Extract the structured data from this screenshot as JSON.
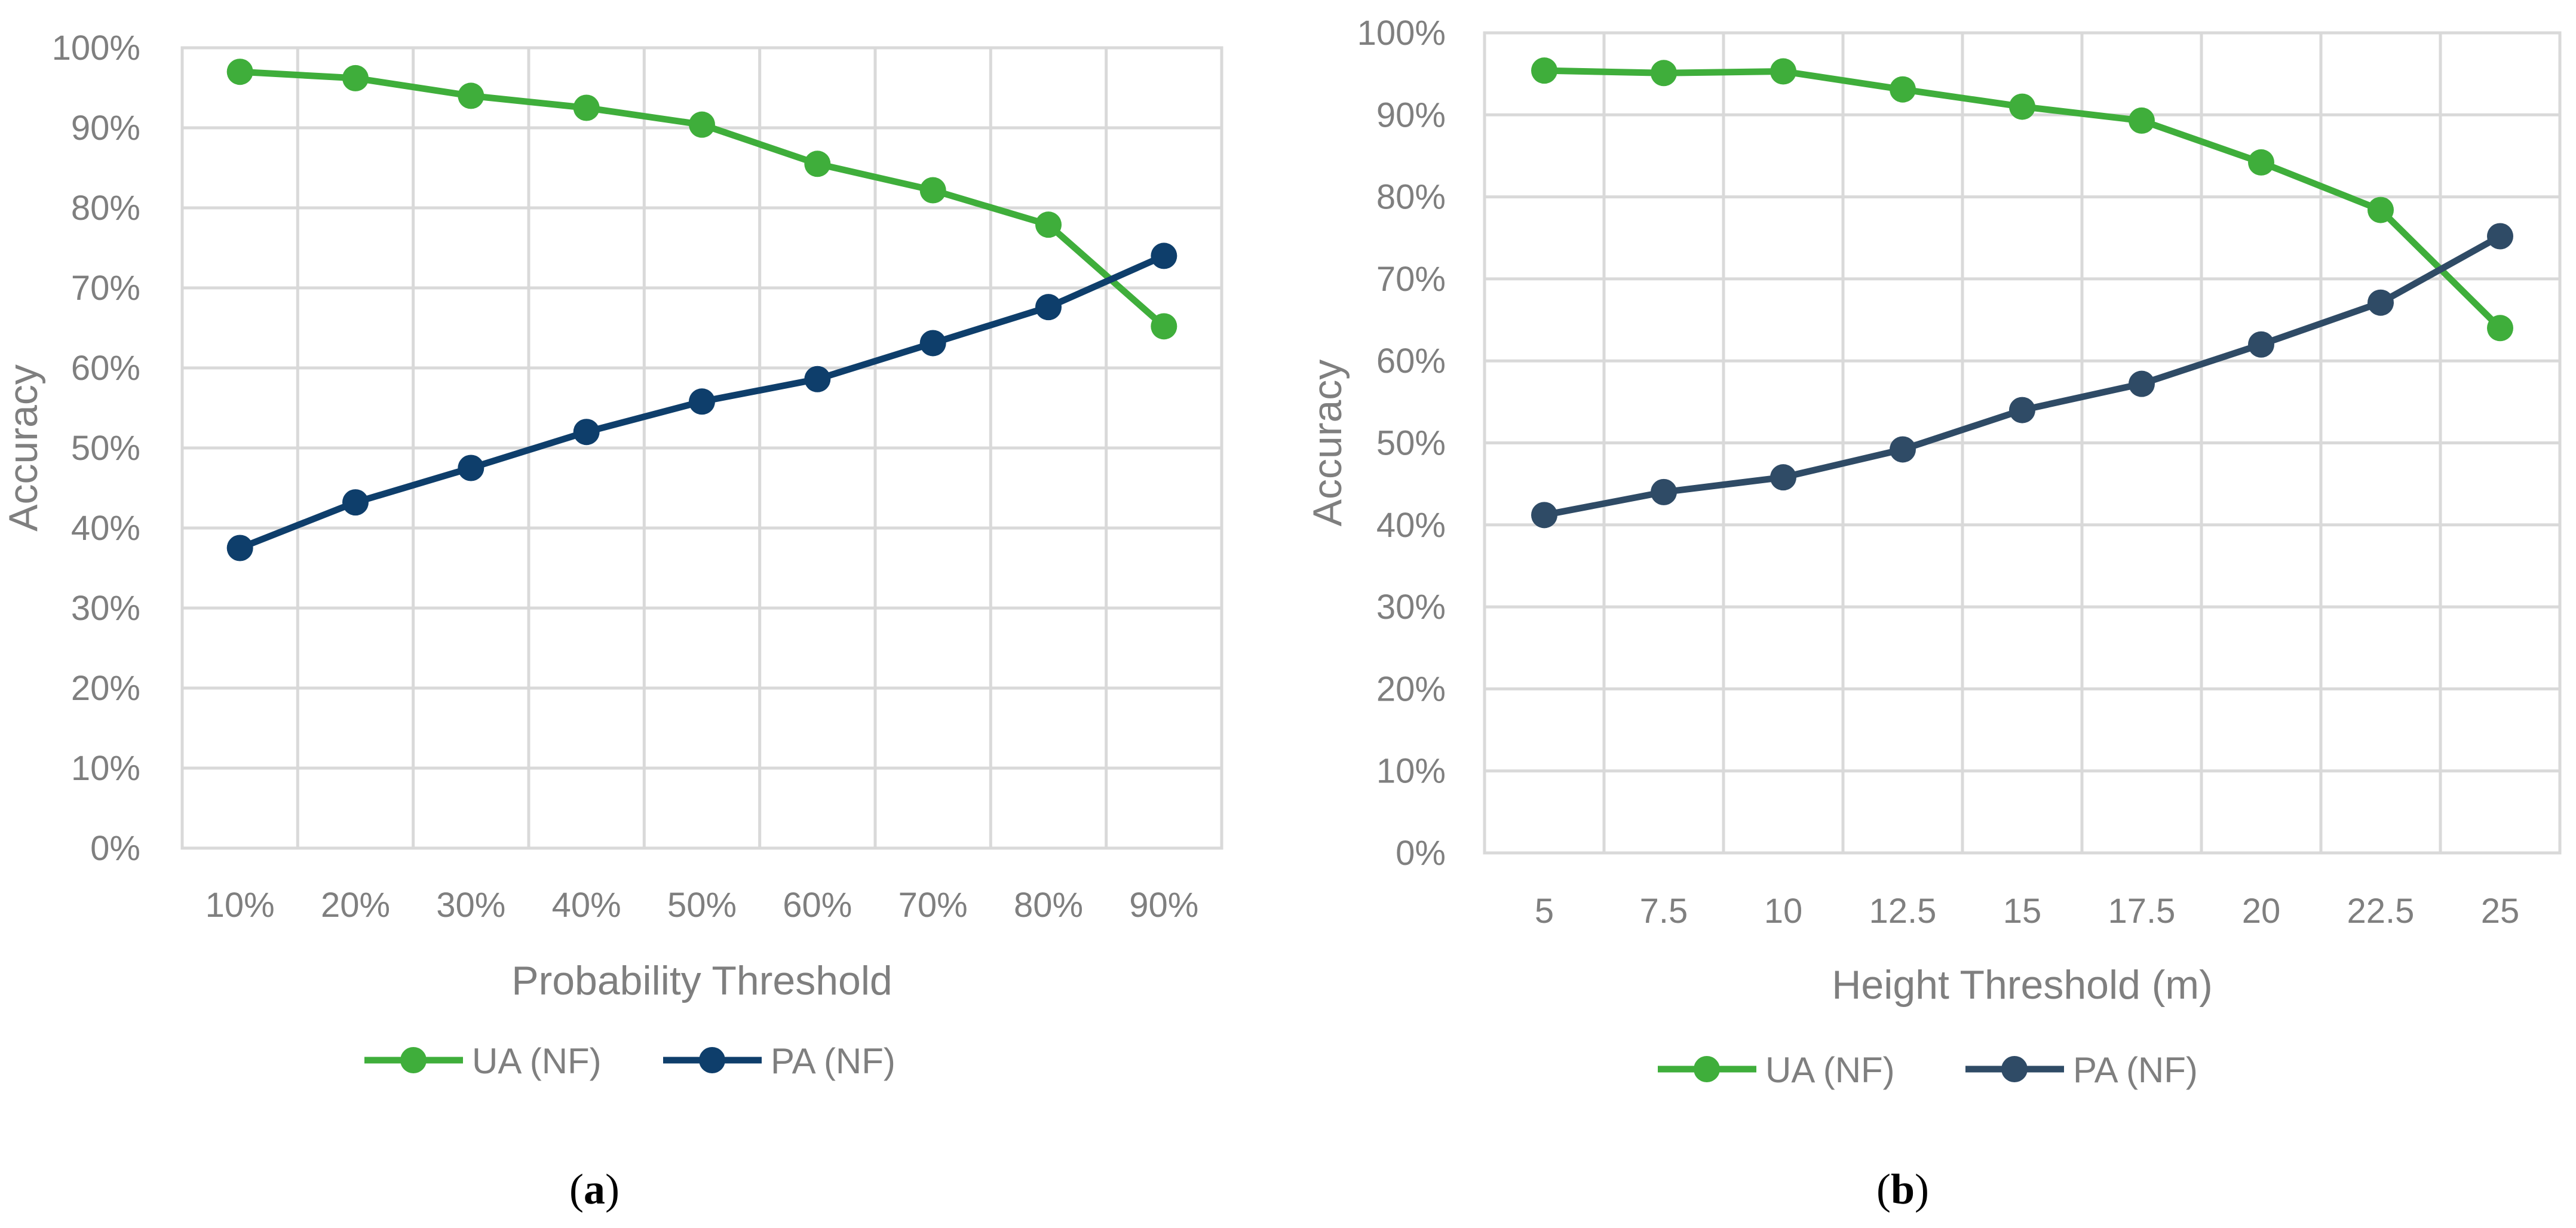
{
  "chart_data": [
    {
      "type": "line",
      "panel_label": "a",
      "xlabel": "Probability Threshold",
      "ylabel": "Accuracy",
      "categories": [
        "10%",
        "20%",
        "30%",
        "40%",
        "50%",
        "60%",
        "70%",
        "80%",
        "90%"
      ],
      "y_ticks": [
        "0%",
        "10%",
        "20%",
        "30%",
        "40%",
        "50%",
        "60%",
        "70%",
        "80%",
        "90%",
        "100%"
      ],
      "ylim": [
        0,
        100
      ],
      "grid": true,
      "legend_position": "bottom",
      "series": [
        {
          "name": "UA (NF)",
          "color": "#3fae3b",
          "values": [
            97,
            96.2,
            94,
            92.5,
            90.4,
            85.5,
            82.2,
            77.9,
            65.2
          ]
        },
        {
          "name": "PA (NF)",
          "color": "#0e3e6b",
          "values": [
            37.5,
            43.2,
            47.5,
            52,
            55.8,
            58.6,
            63.1,
            67.6,
            74
          ]
        }
      ]
    },
    {
      "type": "line",
      "panel_label": "b",
      "xlabel": "Height Threshold (m)",
      "ylabel": "Accuracy",
      "categories": [
        "5",
        "7.5",
        "10",
        "12.5",
        "15",
        "17.5",
        "20",
        "22.5",
        "25"
      ],
      "y_ticks": [
        "0%",
        "10%",
        "20%",
        "30%",
        "40%",
        "50%",
        "60%",
        "70%",
        "80%",
        "90%",
        "100%"
      ],
      "ylim": [
        0,
        100
      ],
      "grid": true,
      "legend_position": "bottom",
      "series": [
        {
          "name": "UA (NF)",
          "color": "#3fae3b",
          "values": [
            95.4,
            95.1,
            95.3,
            93.1,
            91,
            89.3,
            84.2,
            78.4,
            64
          ]
        },
        {
          "name": "PA (NF)",
          "color": "#2f4b66",
          "values": [
            41.2,
            44,
            45.8,
            49.2,
            54,
            57.2,
            62,
            67.1,
            75.2
          ]
        }
      ]
    }
  ]
}
